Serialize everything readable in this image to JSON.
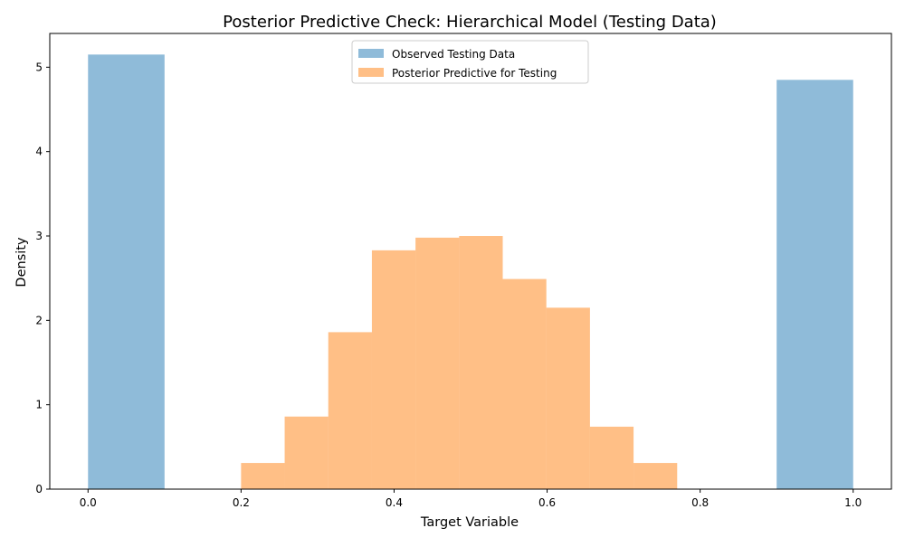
{
  "chart_data": {
    "type": "bar",
    "title": "Posterior Predictive Check: Hierarchical Model (Testing Data)",
    "xlabel": "Target Variable",
    "ylabel": "Density",
    "xlim": [
      -0.05,
      1.05
    ],
    "ylim": [
      0,
      5.4
    ],
    "x_ticks": [
      "0.0",
      "0.2",
      "0.4",
      "0.6",
      "0.8",
      "1.0"
    ],
    "x_tick_values": [
      0.0,
      0.2,
      0.4,
      0.6,
      0.8,
      1.0
    ],
    "y_ticks": [
      "0",
      "1",
      "2",
      "3",
      "4",
      "5"
    ],
    "y_tick_values": [
      0,
      1,
      2,
      3,
      4,
      5
    ],
    "grid": false,
    "legend_position": "top-center",
    "series": [
      {
        "name": "Observed Testing Data",
        "color": "#1f77b4",
        "alpha": 0.5,
        "bins": [
          {
            "x0": 0.0,
            "x1": 0.1,
            "density": 5.15
          },
          {
            "x0": 0.9,
            "x1": 1.0,
            "density": 4.85
          }
        ]
      },
      {
        "name": "Posterior Predictive for Testing",
        "color": "#ff7f0e",
        "alpha": 0.5,
        "bins": [
          {
            "x0": 0.2,
            "x1": 0.257,
            "density": 0.31
          },
          {
            "x0": 0.257,
            "x1": 0.314,
            "density": 0.86
          },
          {
            "x0": 0.314,
            "x1": 0.371,
            "density": 1.86
          },
          {
            "x0": 0.371,
            "x1": 0.428,
            "density": 2.83
          },
          {
            "x0": 0.428,
            "x1": 0.485,
            "density": 2.98
          },
          {
            "x0": 0.485,
            "x1": 0.542,
            "density": 3.0
          },
          {
            "x0": 0.542,
            "x1": 0.599,
            "density": 2.49
          },
          {
            "x0": 0.599,
            "x1": 0.656,
            "density": 2.15
          },
          {
            "x0": 0.656,
            "x1": 0.713,
            "density": 0.74
          },
          {
            "x0": 0.713,
            "x1": 0.77,
            "density": 0.31
          }
        ]
      }
    ]
  }
}
